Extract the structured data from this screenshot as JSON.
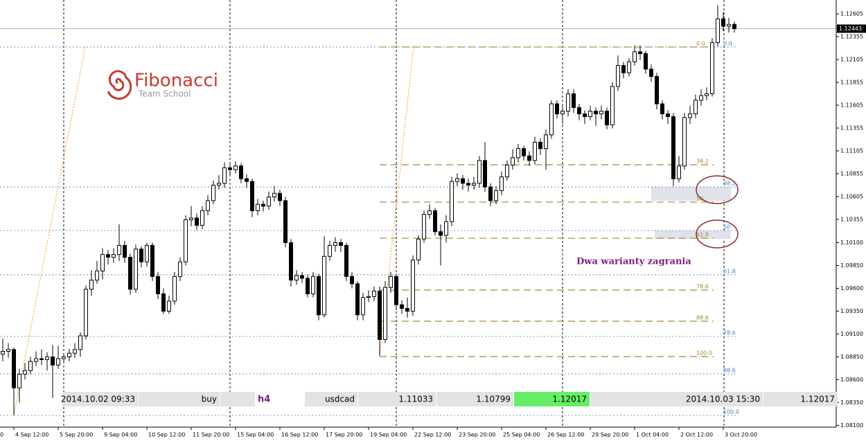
{
  "chart_data": {
    "type": "candlestick",
    "open": [
      1.0888,
      1.0891,
      1.0893,
      1.0851,
      1.0866,
      1.087,
      1.088,
      1.0883,
      1.0882,
      1.0885,
      1.0876,
      1.0883,
      1.0885,
      1.0889,
      1.0893,
      1.0908,
      1.0959,
      1.0969,
      1.0979,
      1.0997,
      1.0994,
      1.0997,
      1.1007,
      1.0994,
      1.0959,
      1.1003,
      1.0989,
      1.1007,
      1.0973,
      1.0954,
      1.0935,
      1.0946,
      1.0973,
      1.0989,
      1.1035,
      1.1037,
      1.1029,
      1.1045,
      1.1056,
      1.1073,
      1.1075,
      1.1092,
      1.109,
      1.1094,
      1.108,
      1.1077,
      1.1045,
      1.1052,
      1.105,
      1.106,
      1.1064,
      1.1056,
      1.101,
      1.0969,
      1.0974,
      1.0971,
      1.0954,
      1.0973,
      1.0931,
      1.0995,
      1.1007,
      1.101,
      1.1007,
      1.0973,
      1.0965,
      1.0931,
      1.095,
      1.0951,
      1.0957,
      1.0904,
      1.0961,
      1.0973,
      1.0942,
      1.0938,
      1.0935,
      1.0991,
      1.1014,
      1.1041,
      1.1045,
      1.1022,
      1.1018,
      1.1033,
      1.1077,
      1.108,
      1.1075,
      1.1073,
      1.1075,
      1.11,
      1.1071,
      1.1056,
      1.1067,
      1.1082,
      1.1095,
      1.1103,
      1.1113,
      1.1105,
      1.11,
      1.112,
      1.1113,
      1.1128,
      1.1162,
      1.1151,
      1.1154,
      1.1173,
      1.1158,
      1.1151,
      1.1148,
      1.1154,
      1.1151,
      1.1154,
      1.1139,
      1.1181,
      1.1204,
      1.1196,
      1.1208,
      1.1219,
      1.1217,
      1.12,
      1.1192,
      1.1162,
      1.1151,
      1.1148,
      1.108,
      1.1094,
      1.1147,
      1.1151,
      1.1166,
      1.1171,
      1.1173,
      1.1229,
      1.1255,
      1.1247,
      1.1249
    ],
    "high": [
      1.0905,
      1.09,
      1.0895,
      1.0872,
      1.0878,
      1.0885,
      1.0891,
      1.0893,
      1.089,
      1.0898,
      1.0897,
      1.0889,
      1.0894,
      1.09,
      1.0912,
      1.0963,
      1.098,
      1.099,
      1.1004,
      1.1002,
      1.1004,
      1.103,
      1.1012,
      1.0998,
      1.1008,
      1.1006,
      1.101,
      1.101,
      1.0978,
      1.096,
      1.0952,
      1.0978,
      1.0994,
      1.104,
      1.105,
      1.1042,
      1.105,
      1.1062,
      1.1078,
      1.1084,
      1.1098,
      1.1096,
      1.1099,
      1.1097,
      1.1085,
      1.108,
      1.1058,
      1.1056,
      1.1066,
      1.1072,
      1.1068,
      1.106,
      1.1014,
      1.098,
      1.0978,
      1.0975,
      1.0978,
      1.0976,
      1.1017,
      1.1012,
      1.1016,
      1.1014,
      1.101,
      1.0978,
      1.0968,
      1.0955,
      1.0958,
      1.0962,
      1.0962,
      1.0968,
      1.0978,
      1.0976,
      1.0947,
      1.095,
      1.0996,
      1.1018,
      1.1045,
      1.1052,
      1.1048,
      1.103,
      1.104,
      1.1082,
      1.1086,
      1.1084,
      1.108,
      1.1082,
      1.1105,
      1.112,
      1.1075,
      1.1072,
      1.1088,
      1.11,
      1.1112,
      1.1118,
      1.1116,
      1.111,
      1.1126,
      1.1124,
      1.1134,
      1.1166,
      1.1166,
      1.116,
      1.1178,
      1.1178,
      1.1162,
      1.1155,
      1.116,
      1.1158,
      1.116,
      1.1158,
      1.1186,
      1.1215,
      1.1208,
      1.1212,
      1.1226,
      1.1226,
      1.122,
      1.1205,
      1.1196,
      1.1166,
      1.1155,
      1.1152,
      1.1105,
      1.1152,
      1.116,
      1.1172,
      1.1178,
      1.118,
      1.1234,
      1.127,
      1.1262,
      1.1256,
      1.1252
    ],
    "low": [
      1.088,
      1.0884,
      1.0821,
      1.0835,
      1.086,
      1.0866,
      1.0875,
      1.0876,
      1.087,
      1.084,
      1.0872,
      1.0878,
      1.088,
      1.0884,
      1.0885,
      1.0904,
      1.0952,
      1.0965,
      1.097,
      1.0986,
      1.0988,
      1.099,
      1.0988,
      1.0953,
      1.0955,
      1.0983,
      1.0984,
      1.0968,
      1.0948,
      1.0932,
      1.0932,
      1.0942,
      1.0968,
      1.0985,
      1.1028,
      1.1024,
      1.1025,
      1.104,
      1.1052,
      1.1068,
      1.107,
      1.1084,
      1.1086,
      1.1075,
      1.107,
      1.1038,
      1.104,
      1.1044,
      1.1046,
      1.1055,
      1.105,
      1.1005,
      1.0962,
      1.0964,
      1.0966,
      1.095,
      1.095,
      1.0925,
      1.0928,
      1.099,
      1.1,
      1.1,
      1.0968,
      1.096,
      1.0925,
      1.0925,
      1.0945,
      1.0946,
      1.0886,
      1.09,
      1.0955,
      1.0936,
      1.0932,
      1.0928,
      1.093,
      1.0986,
      1.101,
      1.1036,
      1.1018,
      1.0985,
      1.101,
      1.1028,
      1.1072,
      1.1068,
      1.1066,
      1.1068,
      1.107,
      1.1066,
      1.105,
      1.1052,
      1.1062,
      1.1078,
      1.109,
      1.1098,
      1.11,
      1.1094,
      1.1096,
      1.1106,
      1.109,
      1.1124,
      1.1146,
      1.114,
      1.1148,
      1.1152,
      1.1144,
      1.114,
      1.1144,
      1.1138,
      1.1145,
      1.1134,
      1.1135,
      1.1176,
      1.119,
      1.1192,
      1.1204,
      1.121,
      1.1195,
      1.1186,
      1.1156,
      1.1145,
      1.114,
      1.1072,
      1.1076,
      1.109,
      1.114,
      1.1146,
      1.116,
      1.1166,
      1.117,
      1.1225,
      1.1242,
      1.124,
      1.124
    ],
    "close": [
      1.0891,
      1.0893,
      1.0851,
      1.0866,
      1.087,
      1.088,
      1.0883,
      1.0882,
      1.0885,
      1.0876,
      1.0883,
      1.0885,
      1.0889,
      1.0893,
      1.0908,
      1.0959,
      1.0969,
      1.0979,
      1.0997,
      1.0994,
      1.0997,
      1.1007,
      1.0994,
      1.0959,
      1.1003,
      1.0989,
      1.1007,
      1.0973,
      1.0954,
      1.0935,
      1.0946,
      1.0973,
      1.0989,
      1.1035,
      1.1037,
      1.1029,
      1.1045,
      1.1056,
      1.1073,
      1.1075,
      1.1092,
      1.109,
      1.1094,
      1.108,
      1.1077,
      1.1045,
      1.1052,
      1.105,
      1.106,
      1.1064,
      1.1056,
      1.101,
      1.0969,
      1.0974,
      1.0971,
      1.0954,
      1.0973,
      1.0931,
      1.0995,
      1.1007,
      1.101,
      1.1007,
      1.0973,
      1.0965,
      1.0931,
      1.095,
      1.0951,
      1.0957,
      1.0904,
      1.0961,
      1.0973,
      1.0942,
      1.0938,
      1.0935,
      1.0991,
      1.1014,
      1.1041,
      1.1045,
      1.1022,
      1.1018,
      1.1033,
      1.1077,
      1.108,
      1.1075,
      1.1073,
      1.1075,
      1.11,
      1.1071,
      1.1056,
      1.1067,
      1.1082,
      1.1095,
      1.1103,
      1.1113,
      1.1105,
      1.11,
      1.112,
      1.1113,
      1.1128,
      1.1162,
      1.1151,
      1.1154,
      1.1173,
      1.1158,
      1.1151,
      1.1148,
      1.1154,
      1.1151,
      1.1154,
      1.1139,
      1.1181,
      1.1204,
      1.1196,
      1.1208,
      1.1219,
      1.1217,
      1.12,
      1.1192,
      1.1162,
      1.1151,
      1.1148,
      1.108,
      1.1094,
      1.1147,
      1.1151,
      1.1166,
      1.1171,
      1.1173,
      1.1229,
      1.1255,
      1.1247,
      1.1249,
      1.12443
    ],
    "ylim": [
      1.0808,
      1.12757
    ],
    "yticks": [
      1.12605,
      1.12355,
      1.12105,
      1.11855,
      1.11605,
      1.11355,
      1.11105,
      1.10855,
      1.10605,
      1.10355,
      {
        "value": 1.101,
        "label": "1.10100"
      },
      {
        "value": 1.0985,
        "label": "1.09850"
      },
      {
        "value": 1.096,
        "label": "1.09600"
      },
      {
        "value": 1.0935,
        "label": "1.09350"
      },
      {
        "value": 1.091,
        "label": "1.09100"
      },
      {
        "value": 1.0885,
        "label": "1.08850"
      },
      {
        "value": 1.086,
        "label": "1.08600"
      },
      {
        "value": 1.0835,
        "label": "1.08350"
      },
      {
        "value": 1.081,
        "label": "1.08100"
      }
    ],
    "xticks": [
      "4 Sep 12:00",
      "5 Sep 20:00",
      "9 Sep 04:00",
      "10 Sep 12:00",
      "11 Sep 20:00",
      "15 Sep 04:00",
      "16 Sep 12:00",
      "17 Sep 20:00",
      "19 Sep 04:00",
      "22 Sep 12:00",
      "23 Sep 20:00",
      "25 Sep 04:00",
      "26 Sep 12:00",
      "29 Sep 20:00",
      "1 Oct 04:00",
      "2 Oct 12:00",
      "3 Oct 20:00"
    ],
    "x_fragment": "0",
    "current_price": 1.12443,
    "fib_sets": [
      {
        "color": "#4a78c8",
        "levels": [
          {
            "label": "0.0",
            "price": 1.12242
          },
          {
            "label": "38.2",
            "price": 1.1071
          },
          {
            "label": "50",
            "price": 1.10233
          },
          {
            "label": "61.8",
            "price": 1.09748
          },
          {
            "label": "78.6",
            "price": 1.09073
          },
          {
            "label": "88.6",
            "price": 1.08664
          },
          {
            "label": "100.0",
            "price": 1.08209
          }
        ]
      },
      {
        "color": "#a3862a",
        "levels": [
          {
            "label": "0.0",
            "price": 1.12242
          },
          {
            "label": "38.2",
            "price": 1.10953
          },
          {
            "label": "50",
            "price": 1.10544
          },
          {
            "label": "61.8",
            "price": 1.10149
          },
          {
            "label": "78.6",
            "price": 1.09581
          },
          {
            "label": "88.6",
            "price": 1.0924
          },
          {
            "label": "100.0",
            "price": 1.08853
          }
        ]
      }
    ],
    "annotation": "Dwa warianty zagrania"
  },
  "logo": {
    "title": "Fibonacci",
    "subtitle": "Team School"
  },
  "info_bar": [
    "2014.10.02 09:33",
    "buy",
    "h4",
    "usdcad",
    "1.11033",
    "1.10799",
    "1.12017",
    "2014.10.03 15:30",
    "1.12017"
  ]
}
